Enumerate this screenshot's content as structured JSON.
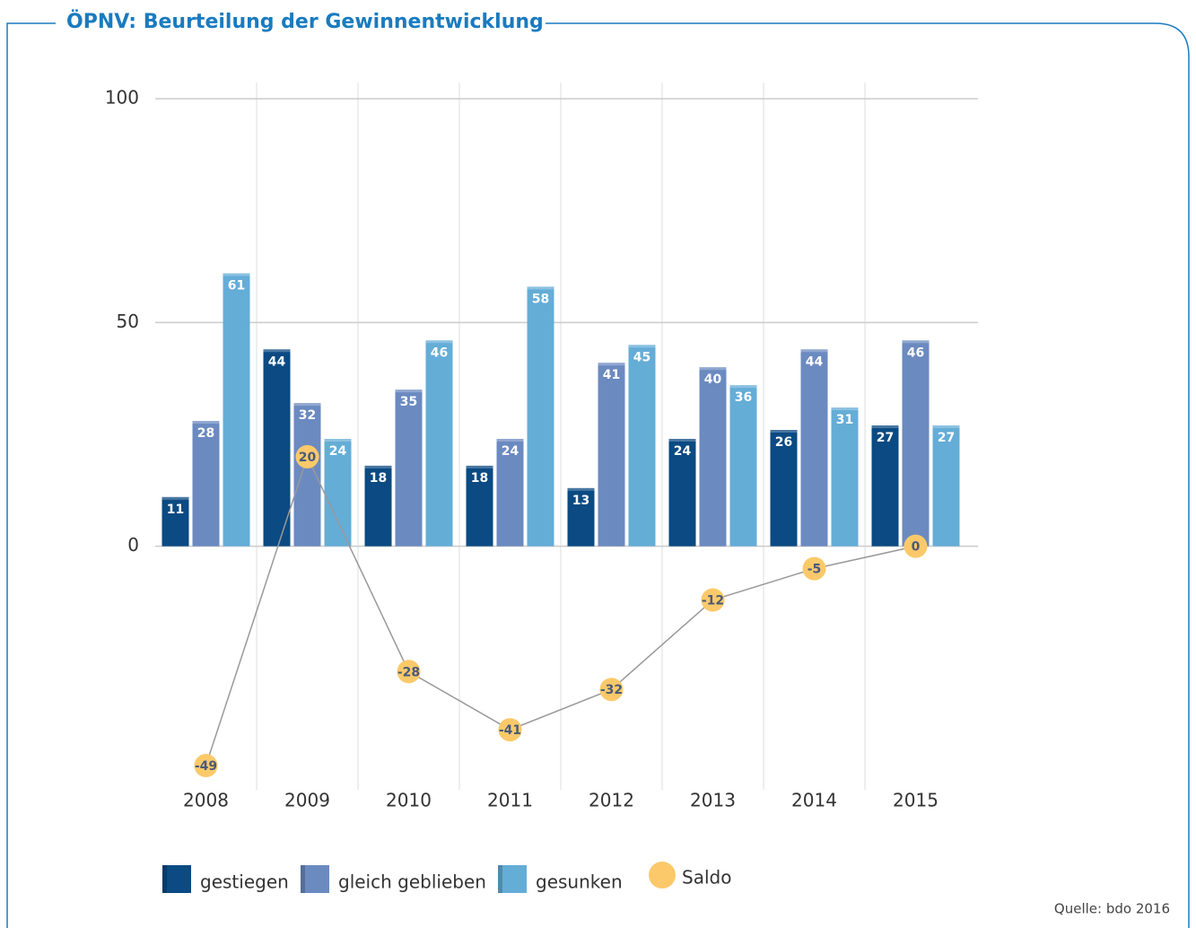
{
  "chart_data": {
    "type": "bar",
    "title": "ÖPNV: Beurteilung der Gewinnentwicklung",
    "categories": [
      "2008",
      "2009",
      "2010",
      "2011",
      "2012",
      "2013",
      "2014",
      "2015"
    ],
    "series": [
      {
        "name": "gestiegen",
        "color": "#0b4a82",
        "values": [
          11,
          44,
          18,
          18,
          13,
          24,
          26,
          27
        ]
      },
      {
        "name": "gleich geblieben",
        "color": "#6b8ac0",
        "values": [
          28,
          32,
          35,
          24,
          41,
          40,
          44,
          46
        ]
      },
      {
        "name": "gesunken",
        "color": "#64add7",
        "values": [
          61,
          24,
          46,
          58,
          45,
          36,
          31,
          27
        ]
      },
      {
        "name": "Saldo",
        "type": "line",
        "color": "#fbc96a",
        "values": [
          -49,
          20,
          -28,
          -41,
          -32,
          -12,
          -5,
          0
        ]
      }
    ],
    "ylim": [
      -50,
      100
    ],
    "yticks": [
      0,
      50,
      100
    ],
    "grid": true,
    "source": "Quelle: bdo 2016"
  }
}
